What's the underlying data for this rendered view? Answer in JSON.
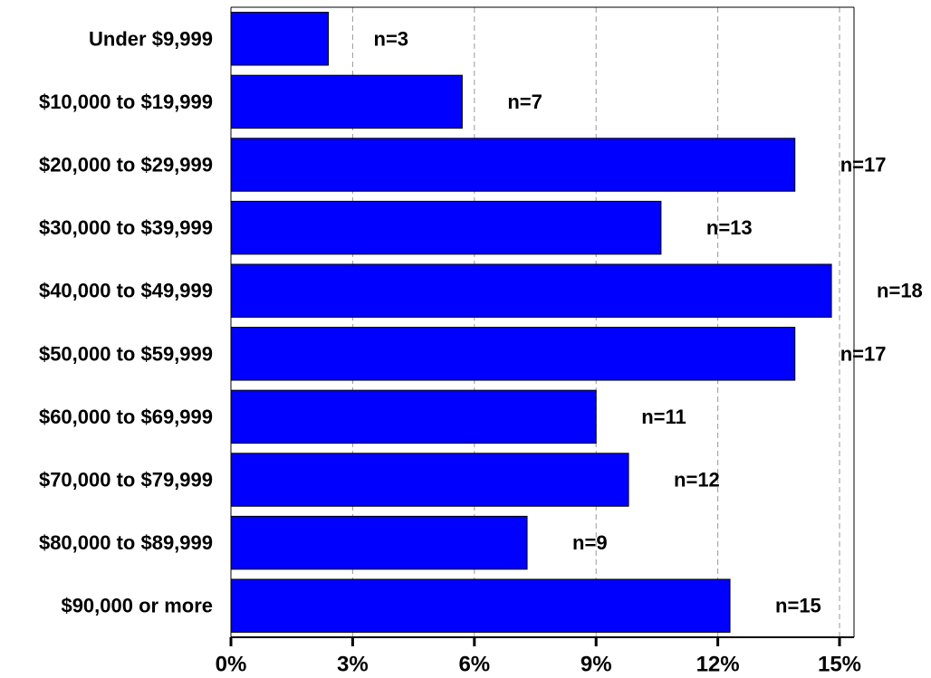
{
  "chart_data": {
    "type": "bar",
    "orientation": "horizontal",
    "categories": [
      "Under $9,999",
      "$10,000 to $19,999",
      "$20,000 to $29,999",
      "$30,000 to $39,999",
      "$40,000 to $49,999",
      "$50,000 to $59,999",
      "$60,000 to $69,999",
      "$70,000 to $79,999",
      "$80,000 to $89,999",
      "$90,000 or more"
    ],
    "values": [
      2.4,
      5.7,
      13.9,
      10.6,
      14.8,
      13.9,
      9.0,
      9.8,
      7.3,
      12.3
    ],
    "data_labels": [
      "n=3",
      "n=7",
      "n=17",
      "n=13",
      "n=18",
      "n=17",
      "n=11",
      "n=12",
      "n=9",
      "n=15"
    ],
    "xlim": [
      0,
      15
    ],
    "xticks": [
      0,
      3,
      6,
      9,
      12,
      15
    ],
    "xtick_labels": [
      "0%",
      "3%",
      "6%",
      "9%",
      "12%",
      "15%"
    ],
    "grid": true,
    "bar_color": "#0000FF",
    "title": "",
    "xlabel": "",
    "ylabel": ""
  }
}
